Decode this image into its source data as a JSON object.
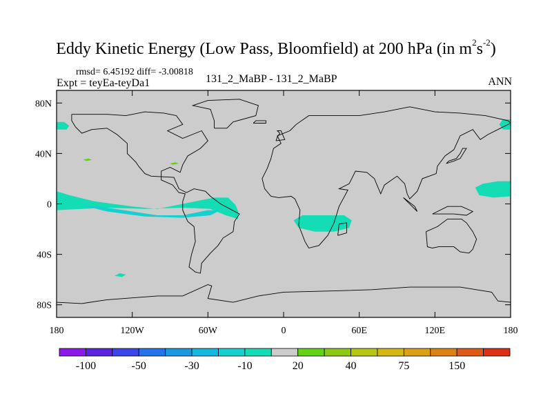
{
  "title": "Eddy Kinetic Energy (Low Pass, Bloomfield) at 200 hPa",
  "units": {
    "prefix": " (in m",
    "sup1": "2",
    "mid": "s",
    "sup2": "-2",
    "suffix": ")"
  },
  "stats_text": "rmsd= 6.45192 diff= -3.00818",
  "expt_text": "Expt = teyEa-teyDa1",
  "case_text": "131_2_MaBP - 131_2_MaBP",
  "season": "ANN",
  "chart_data": {
    "type": "heatmap",
    "projection": "cylindrical-equidistant",
    "xlim": [
      -180,
      180
    ],
    "ylim": [
      -90,
      90
    ],
    "x_ticks": [
      {
        "value": -180,
        "label": "180"
      },
      {
        "value": -120,
        "label": "120W"
      },
      {
        "value": -60,
        "label": "60W"
      },
      {
        "value": 0,
        "label": "0"
      },
      {
        "value": 60,
        "label": "60E"
      },
      {
        "value": 120,
        "label": "120E"
      },
      {
        "value": 180,
        "label": "180"
      }
    ],
    "y_ticks": [
      {
        "value": 80,
        "label": "80N"
      },
      {
        "value": 40,
        "label": "40N"
      },
      {
        "value": 0,
        "label": "0"
      },
      {
        "value": -40,
        "label": "40S"
      },
      {
        "value": -80,
        "label": "80S"
      }
    ],
    "background_color": "#cccccc",
    "colorbar": {
      "colors": [
        "#8b1ae8",
        "#5c24e0",
        "#3c46e8",
        "#2374e8",
        "#1a98e0",
        "#14b8e0",
        "#14d0d0",
        "#14dcb4",
        "#cccccc",
        "#64d214",
        "#8cc814",
        "#b4c814",
        "#d4b814",
        "#dca014",
        "#dc8214",
        "#dc5a14",
        "#dc3014"
      ],
      "labels": [
        {
          "after_box": 1,
          "text": "-100"
        },
        {
          "after_box": 3,
          "text": "-50"
        },
        {
          "after_box": 5,
          "text": "-30"
        },
        {
          "after_box": 7,
          "text": "-10"
        },
        {
          "after_box": 9,
          "text": "20"
        },
        {
          "after_box": 11,
          "text": "40"
        },
        {
          "after_box": 13,
          "text": "75"
        },
        {
          "after_box": 15,
          "text": "150"
        }
      ]
    },
    "shaded_regions": [
      {
        "name": "tropical-pacific-band",
        "level": "-10 to 0",
        "color": "#14dcb4",
        "points": [
          [
            -180,
            10
          ],
          [
            -170,
            7
          ],
          [
            -150,
            2
          ],
          [
            -120,
            -2
          ],
          [
            -100,
            -4
          ],
          [
            -80,
            0
          ],
          [
            -55,
            5
          ],
          [
            -44,
            5
          ],
          [
            -38,
            -1
          ],
          [
            -36,
            -6
          ],
          [
            -36,
            -12
          ],
          [
            -46,
            -9
          ],
          [
            -58,
            -4
          ],
          [
            -80,
            -3
          ],
          [
            -110,
            -4
          ],
          [
            -140,
            -3
          ],
          [
            -160,
            -4
          ],
          [
            -180,
            -5
          ]
        ]
      },
      {
        "name": "tropical-pacific-core",
        "level": "-30 to -10",
        "color": "#14d0d0",
        "points": [
          [
            -160,
            -1
          ],
          [
            -140,
            -3
          ],
          [
            -120,
            -6
          ],
          [
            -100,
            -9
          ],
          [
            -80,
            -9
          ],
          [
            -60,
            -5
          ],
          [
            -50,
            -5
          ],
          [
            -58,
            -9
          ],
          [
            -80,
            -11
          ],
          [
            -110,
            -10
          ],
          [
            -140,
            -6
          ]
        ]
      },
      {
        "name": "south-atlantic-africa-blob",
        "level": "-10 to 0",
        "color": "#14dcb4",
        "points": [
          [
            8,
            -13
          ],
          [
            15,
            -9
          ],
          [
            30,
            -9
          ],
          [
            48,
            -9
          ],
          [
            54,
            -13
          ],
          [
            52,
            -19
          ],
          [
            40,
            -22
          ],
          [
            25,
            -22
          ],
          [
            12,
            -19
          ]
        ]
      },
      {
        "name": "alaska-blob",
        "level": "-10 to 0",
        "color": "#14dcb4",
        "points": [
          [
            -180,
            59
          ],
          [
            -172,
            59
          ],
          [
            -170,
            62
          ],
          [
            -174,
            65
          ],
          [
            -180,
            65
          ]
        ]
      },
      {
        "name": "east-siberia-blob",
        "level": "-10 to 0",
        "color": "#14dcb4",
        "points": [
          [
            180,
            59
          ],
          [
            174,
            59
          ],
          [
            171,
            63
          ],
          [
            174,
            67
          ],
          [
            180,
            67
          ]
        ]
      },
      {
        "name": "west-pacific-blob",
        "level": "-10 to 0",
        "color": "#14dcb4",
        "points": [
          [
            180,
            18
          ],
          [
            170,
            18
          ],
          [
            158,
            16
          ],
          [
            152,
            13
          ],
          [
            155,
            7
          ],
          [
            166,
            5
          ],
          [
            180,
            6
          ]
        ]
      },
      {
        "name": "small-blob-1",
        "level": "-10 to 0",
        "color": "#14dcb4",
        "points": [
          [
            -134,
            -57
          ],
          [
            -130,
            -55
          ],
          [
            -125,
            -56
          ],
          [
            -128,
            -58
          ]
        ]
      },
      {
        "name": "small-blob-2",
        "level": "0 to 10",
        "color": "#64d214",
        "points": [
          [
            -159,
            35
          ],
          [
            -155,
            36
          ],
          [
            -152,
            35
          ],
          [
            -156,
            34
          ]
        ]
      },
      {
        "name": "small-blob-3",
        "level": "0 to 10",
        "color": "#64d214",
        "points": [
          [
            -90,
            32
          ],
          [
            -86,
            33
          ],
          [
            -83,
            32
          ],
          [
            -88,
            31
          ]
        ]
      }
    ]
  }
}
